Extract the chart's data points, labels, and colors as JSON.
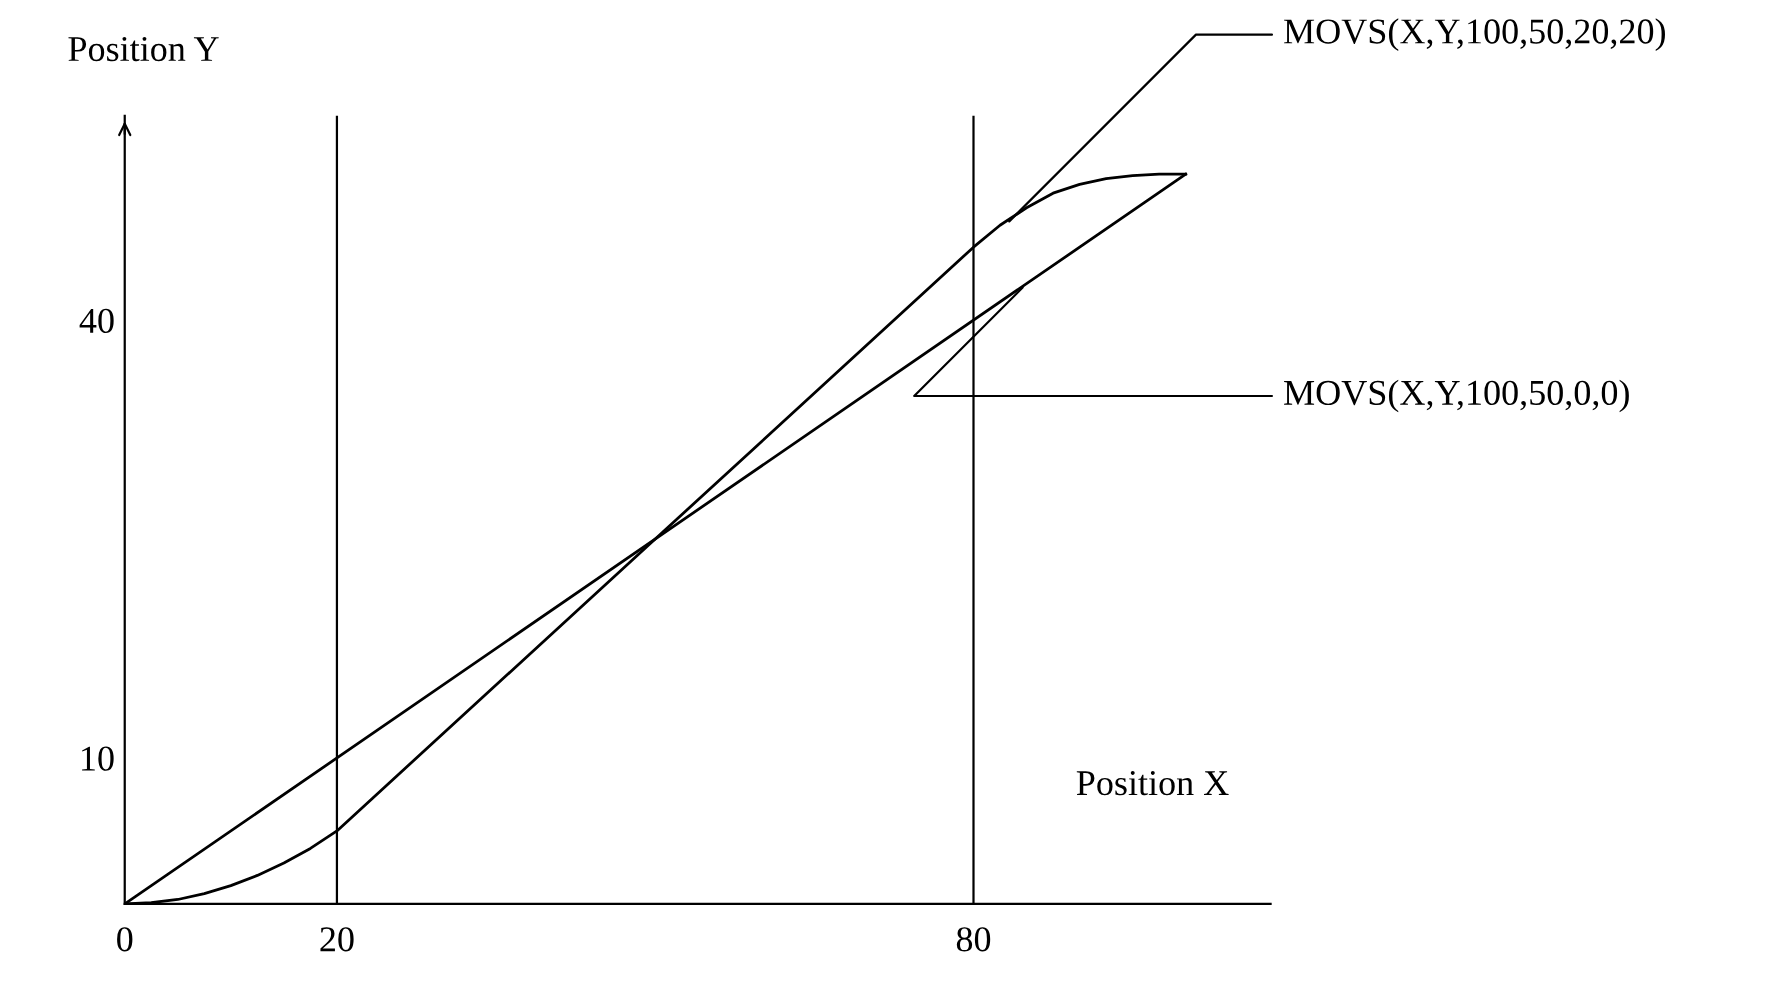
{
  "chart_data": {
    "type": "line",
    "xlabel": "Position X",
    "ylabel": "Position Y",
    "xlim": [
      0,
      108
    ],
    "ylim": [
      0,
      54
    ],
    "xticks": [
      0,
      20,
      80
    ],
    "yticks": [
      10,
      40
    ],
    "grid": false,
    "legend": false,
    "marker": "none",
    "line_style": "solid",
    "series": [
      {
        "color": "#000000",
        "x": [
          0,
          2.5,
          5,
          7.5,
          10,
          12.5,
          15,
          17.5,
          20,
          50,
          80,
          82.5,
          85,
          87.5,
          90,
          92.5,
          95,
          97.5,
          100
        ],
        "values": [
          0,
          0.08,
          0.3,
          0.7,
          1.25,
          1.95,
          2.8,
          3.8,
          5,
          25,
          45,
          46.5,
          47.7,
          48.7,
          49.3,
          49.7,
          49.9,
          50,
          50
        ]
      },
      {
        "color": "#000000",
        "x": [
          0,
          100
        ],
        "values": [
          0,
          50
        ]
      }
    ],
    "ref_lines": [
      {
        "axis": "x",
        "value": 20,
        "color": "#000000"
      },
      {
        "axis": "x",
        "value": 80,
        "color": "#000000"
      }
    ],
    "annotations": [
      {
        "text": "MOVS(X,Y,100,50,20,20)",
        "x": 83,
        "y": 46.5
      },
      {
        "text": "MOVS(X,Y,100,50,0,0)",
        "x": 85,
        "y": 42.5
      }
    ]
  }
}
